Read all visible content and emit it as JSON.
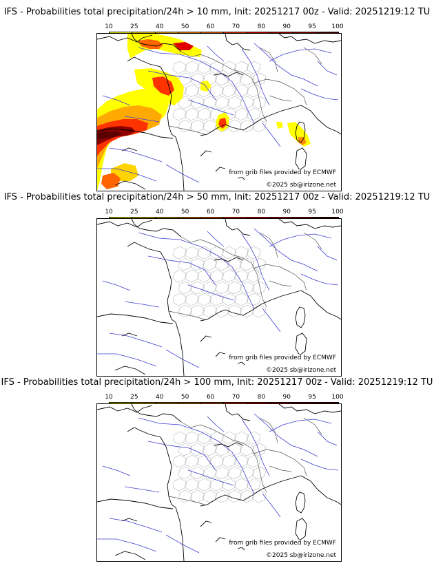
{
  "legend": {
    "ticks": [
      "10",
      "25",
      "40",
      "50",
      "60",
      "70",
      "80",
      "90",
      "95",
      "100"
    ],
    "colors": [
      "#ffff00",
      "#ffd400",
      "#ffaa00",
      "#ff8c00",
      "#ff6600",
      "#ff3300",
      "#e00000",
      "#b40000",
      "#8c0000",
      "#5a0000"
    ]
  },
  "panels": [
    {
      "title": "IFS - Probabilities total precipitation/24h > 10 mm, Init: 20251217 00z - Valid: 20251219:12 TU",
      "source_credit": "from grib files provided by ECMWF",
      "copyright": "©2025 sb@irizone.net",
      "has_precipitation": true
    },
    {
      "title": "IFS - Probabilities total precipitation/24h > 50 mm, Init: 20251217 00z - Valid: 20251219:12 TU",
      "source_credit": "from grib files provided by ECMWF",
      "copyright": "©2025 sb@irizone.net",
      "has_precipitation": false
    },
    {
      "title": "IFS - Probabilities total precipitation/24h > 100 mm, Init: 20251217 00z - Valid: 20251219:12 TU",
      "source_credit": "from grib files provided by ECMWF",
      "copyright": "©2025 sb@irizone.net",
      "has_precipitation": false
    }
  ]
}
